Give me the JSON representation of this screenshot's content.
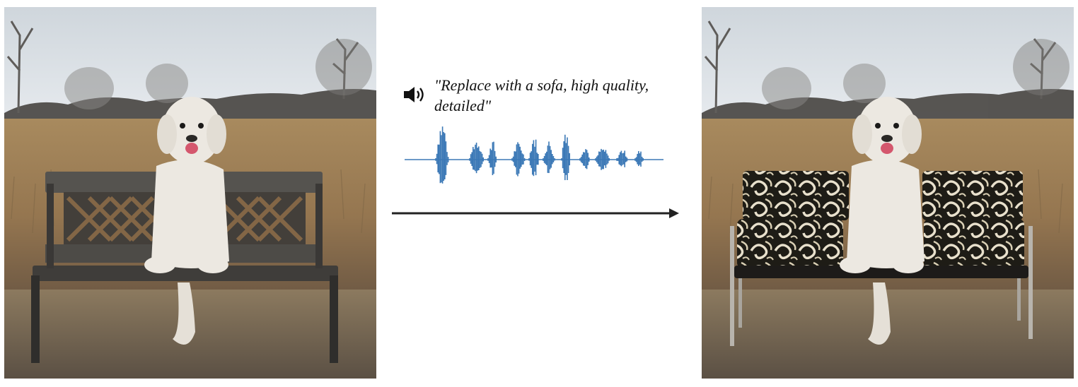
{
  "caption": {
    "instruction": "\"Replace with a sofa, high quality, detailed\""
  },
  "icons": {
    "speaker": "speaker-volume-icon",
    "arrow": "right-arrow-icon"
  },
  "colors": {
    "waveform": "#3b78b6",
    "arrow": "#222222",
    "text": "#111111",
    "sky": "#d7dde2",
    "field": "#9e7f54",
    "bench": "#4a4a48",
    "sofa_pattern_dark": "#1e1c16",
    "sofa_pattern_light": "#e8e0cc"
  },
  "images": {
    "input": "Dog sitting on a wooden bench in a dry field",
    "output": "Dog sitting on a patterned sofa in a dry field"
  }
}
